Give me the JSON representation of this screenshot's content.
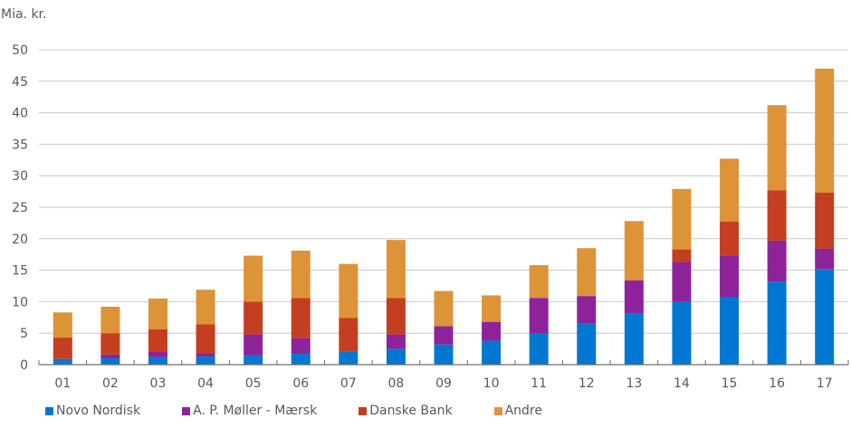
{
  "chart_data": {
    "type": "bar",
    "stacked": true,
    "title": "",
    "unit_label": "Mia. kr.",
    "xlabel": "",
    "ylabel": "Mia. kr.",
    "ylim": [
      0,
      50
    ],
    "yticks": [
      0,
      5,
      10,
      15,
      20,
      25,
      30,
      35,
      40,
      45,
      50
    ],
    "grid": true,
    "legend_position": "bottom",
    "categories": [
      "01",
      "02",
      "03",
      "04",
      "05",
      "06",
      "07",
      "08",
      "09",
      "10",
      "11",
      "12",
      "13",
      "14",
      "15",
      "16",
      "17"
    ],
    "series": [
      {
        "name": "Novo Nordisk",
        "color": "#0078D2",
        "values": [
          0.9,
          1.0,
          1.2,
          1.3,
          1.5,
          1.8,
          2.1,
          2.5,
          3.2,
          3.8,
          4.9,
          6.6,
          8.1,
          10.0,
          10.7,
          13.2,
          15.2
        ]
      },
      {
        "name": "A. P. Møller - Mærsk",
        "color": "#8E2399",
        "values": [
          0.0,
          0.6,
          0.9,
          0.5,
          3.3,
          2.4,
          0.0,
          2.3,
          2.9,
          3.0,
          5.7,
          4.3,
          5.3,
          6.3,
          6.6,
          6.5,
          3.2
        ]
      },
      {
        "name": "Danske Bank",
        "color": "#C43E21",
        "values": [
          3.4,
          3.4,
          3.5,
          4.6,
          5.2,
          6.4,
          5.3,
          5.8,
          0.0,
          0.0,
          0.0,
          0.0,
          0.0,
          2.0,
          5.4,
          8.0,
          8.9
        ]
      },
      {
        "name": "Andre",
        "color": "#DD9338",
        "values": [
          4.0,
          4.2,
          4.9,
          5.5,
          7.3,
          7.5,
          8.6,
          9.2,
          5.6,
          4.2,
          5.2,
          7.6,
          9.4,
          9.6,
          10.0,
          13.5,
          19.7
        ]
      }
    ]
  }
}
